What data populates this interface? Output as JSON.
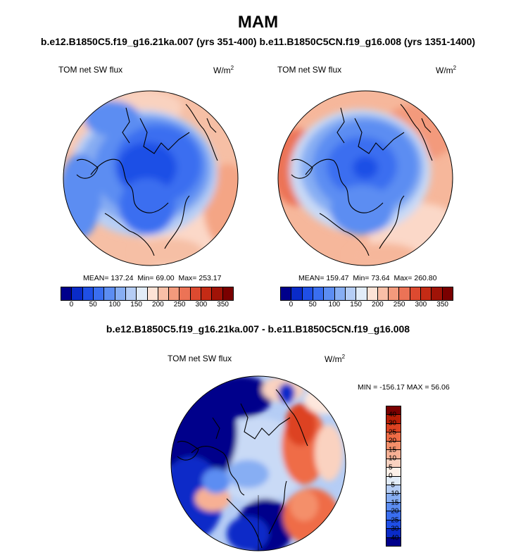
{
  "figure": {
    "season": "MAM",
    "cases_title": "b.e12.B1850C5.f19_g16.21ka.007 (yrs 351-400) b.e11.B1850C5CN.f19_g16.008 (yrs 1351-1400)",
    "diff_title": "b.e12.B1850C5.f19_g16.21ka.007 - b.e11.B1850C5CN.f19_g16.008"
  },
  "panels": {
    "left": {
      "variable": "TOM net SW flux",
      "units": "W/m",
      "units_sup": "2",
      "mean_label": "MEAN=",
      "mean": "137.24",
      "min_label": "Min=",
      "min": "69.00",
      "max_label": "Max=",
      "max": "253.17"
    },
    "right": {
      "variable": "TOM net SW flux",
      "units": "W/m",
      "units_sup": "2",
      "mean_label": "MEAN=",
      "mean": "159.47",
      "min_label": "Min=",
      "min": "73.64",
      "max_label": "Max=",
      "max": "260.80"
    },
    "diff": {
      "variable": "TOM net SW flux",
      "units": "W/m",
      "units_sup": "2",
      "range_text": "MIN = -156.17 MAX =  56.06"
    }
  },
  "colorbar_abs": {
    "colors": [
      "#00008b",
      "#0a2bc8",
      "#1f4fe6",
      "#3a6ef0",
      "#5c8df2",
      "#87aef3",
      "#b5cdf5",
      "#e2ecf8",
      "#fde3d6",
      "#f9bfa7",
      "#f39a7c",
      "#ec7356",
      "#dd4a30",
      "#c42b15",
      "#a01307",
      "#7a0000"
    ],
    "ticks": [
      "0",
      "50",
      "100",
      "150",
      "200",
      "250",
      "300",
      "350"
    ]
  },
  "colorbar_diff": {
    "colors": [
      "#7a0000",
      "#b81e06",
      "#dd4322",
      "#ef6c46",
      "#f48f6a",
      "#f7b094",
      "#fad2c0",
      "#fdf0e8",
      "#e2ecf8",
      "#b5cdf5",
      "#87aef3",
      "#5c8df2",
      "#3a6ef0",
      "#1f4fe6",
      "#0a2bc8",
      "#00008b"
    ],
    "ticks": [
      "40",
      "30",
      "25",
      "20",
      "15",
      "10",
      "5",
      "0",
      "-5",
      "-10",
      "-15",
      "-20",
      "-25",
      "-30",
      "-40"
    ]
  }
}
